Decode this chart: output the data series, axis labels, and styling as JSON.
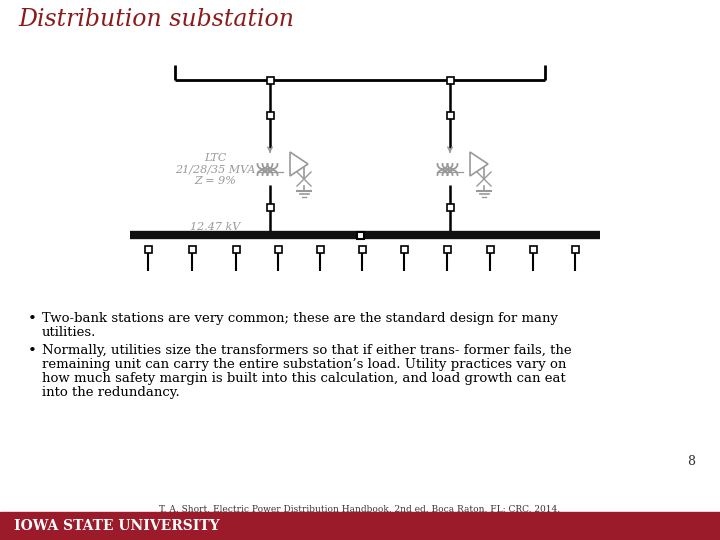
{
  "title": "Distribution substation",
  "title_color": "#8B1A1A",
  "title_fontsize": 17,
  "bg_color": "#FFFFFF",
  "bullet1_line1": "Two-bank stations are very common; these are the standard design for many",
  "bullet1_line2": "utilities.",
  "bullet2_line1": "Normally, utilities size the transformers so that if either trans- former fails, the",
  "bullet2_line2": "remaining unit can carry the entire substation’s load. Utility practices vary on",
  "bullet2_line3": "how much safety margin is built into this calculation, and load growth can eat",
  "bullet2_line4": "into the redundancy.",
  "page_number": "8",
  "citation": "T. A. Short, Electric Power Distribution Handbook, 2nd ed. Boca Raton, FL: CRC, 2014.",
  "footer_text": "IOWA STATE UNIVERSITY",
  "footer_bg": "#9B1B2A",
  "footer_text_color": "#FFFFFF",
  "diagram_label_ltc": "LTC",
  "diagram_label_mva": "21/28/35 MVA",
  "diagram_label_z": "Z = 9%",
  "diagram_label_kv": "12.47 kV",
  "line_color": "#000000",
  "symbol_color": "#999999",
  "thick_line_color": "#111111",
  "text_color": "#000000"
}
